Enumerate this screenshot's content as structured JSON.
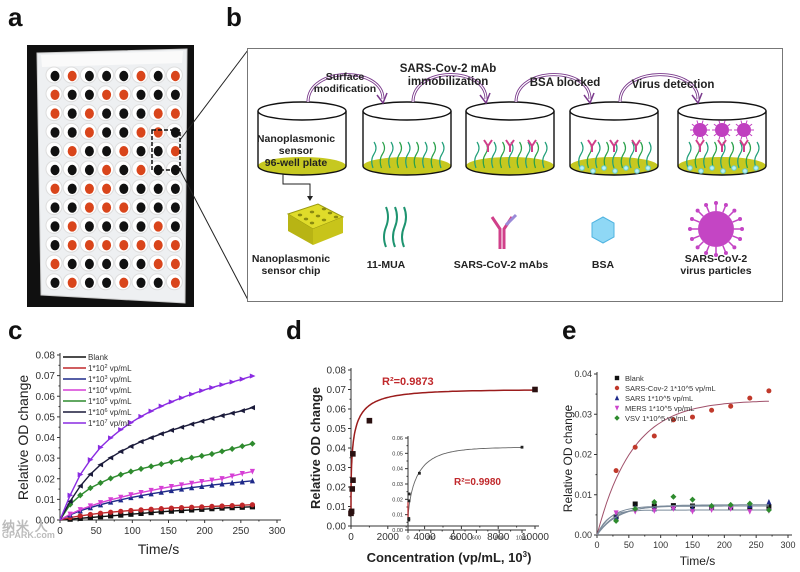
{
  "panels": {
    "a": {
      "letter": "a",
      "description": "Nanoplasmonic sensor 96-well plate photo",
      "rows": 12,
      "cols": 8,
      "well_colors": {
        "orange": "#d9451b",
        "dark": "#111111",
        "plate": "#eef0f2"
      }
    },
    "b": {
      "letter": "b",
      "steps": [
        {
          "label_lines": [
            "Surface",
            "modification"
          ]
        },
        {
          "label_lines": [
            "SARS-Cov-2 mAb",
            "immobilization"
          ]
        },
        {
          "label_lines": [
            "BSA blocked"
          ]
        },
        {
          "label_lines": [
            "Virus detection"
          ]
        }
      ],
      "first_well_label": [
        "Nanoplasmonic",
        "sensor",
        "96-well plate"
      ],
      "legend": [
        {
          "icon": "sensor-chip-icon",
          "label_lines": [
            "Nanoplasmonic",
            "sensor chip"
          ]
        },
        {
          "icon": "mua-strands-icon",
          "label_lines": [
            "11-MUA"
          ]
        },
        {
          "icon": "antibody-icon",
          "label_lines": [
            "SARS-CoV-2 mAbs"
          ]
        },
        {
          "icon": "bsa-hexagon-icon",
          "label_lines": [
            "BSA"
          ]
        },
        {
          "icon": "virus-particle-icon",
          "label_lines": [
            "SARS-CoV-2",
            "virus particles"
          ]
        }
      ]
    },
    "c": {
      "letter": "c"
    },
    "d": {
      "letter": "d"
    },
    "e": {
      "letter": "e"
    }
  },
  "watermark": {
    "line1": "纳米 人",
    "line2": "GPARK.com"
  },
  "chart_data": [
    {
      "id": "c",
      "type": "line",
      "title": "",
      "xlabel": "Time/s",
      "ylabel": "Relative OD change",
      "xlim": [
        0,
        300
      ],
      "ylim": [
        0,
        0.08
      ],
      "xticks": [
        0,
        50,
        100,
        150,
        200,
        250,
        300
      ],
      "yticks": [
        0.0,
        0.01,
        0.02,
        0.03,
        0.04,
        0.05,
        0.06,
        0.07,
        0.08
      ],
      "ytick_labels": [
        "0.00",
        "0.01",
        "0.02",
        "0.03",
        "0.04",
        "0.05",
        "0.06",
        "0.07",
        "0.08"
      ],
      "legend_position": "top-left",
      "x": [
        0,
        14,
        28,
        42,
        56,
        70,
        84,
        98,
        112,
        126,
        140,
        154,
        168,
        182,
        196,
        210,
        224,
        238,
        252,
        266
      ],
      "series": [
        {
          "name": "Blank",
          "sup": "",
          "color": "#111111",
          "marker": "square",
          "values": [
            0,
            0.0004,
            0.0008,
            0.0012,
            0.0016,
            0.002,
            0.0024,
            0.0028,
            0.0032,
            0.0036,
            0.004,
            0.0043,
            0.0046,
            0.0049,
            0.0052,
            0.0055,
            0.0058,
            0.006,
            0.0062,
            0.0064
          ]
        },
        {
          "name": "1*10",
          "sup": "2",
          "unit": " vp/mL",
          "color": "#c0282b",
          "marker": "circle",
          "values": [
            0,
            0.0012,
            0.002,
            0.0027,
            0.0033,
            0.0038,
            0.0042,
            0.0046,
            0.0049,
            0.0052,
            0.0055,
            0.0058,
            0.006,
            0.0062,
            0.0064,
            0.0066,
            0.0068,
            0.007,
            0.0072,
            0.0074
          ]
        },
        {
          "name": "1*10",
          "sup": "3",
          "unit": " vp/mL",
          "color": "#1f2a8a",
          "marker": "triangle-up",
          "values": [
            0,
            0.0025,
            0.0045,
            0.006,
            0.0074,
            0.0087,
            0.0098,
            0.0109,
            0.0118,
            0.0127,
            0.0135,
            0.0143,
            0.015,
            0.0157,
            0.0163,
            0.0169,
            0.0175,
            0.018,
            0.0185,
            0.019
          ]
        },
        {
          "name": "1*10",
          "sup": "4",
          "unit": " vp/mL",
          "color": "#d63fd6",
          "marker": "triangle-down",
          "values": [
            0,
            0.0028,
            0.005,
            0.0068,
            0.0084,
            0.0098,
            0.011,
            0.0122,
            0.0133,
            0.0143,
            0.0153,
            0.0162,
            0.017,
            0.0178,
            0.0186,
            0.0193,
            0.02,
            0.0213,
            0.0225,
            0.0235
          ]
        },
        {
          "name": "1*10",
          "sup": "5",
          "unit": " vp/mL",
          "color": "#2e8b2e",
          "marker": "diamond",
          "values": [
            0,
            0.0075,
            0.012,
            0.0155,
            0.018,
            0.0202,
            0.022,
            0.0235,
            0.0248,
            0.026,
            0.0271,
            0.0282,
            0.0292,
            0.0302,
            0.0311,
            0.032,
            0.0333,
            0.0345,
            0.0358,
            0.037
          ]
        },
        {
          "name": "1*10",
          "sup": "6",
          "unit": " vp/mL",
          "color": "#1a1a3a",
          "marker": "triangle-left",
          "values": [
            0,
            0.009,
            0.0165,
            0.0222,
            0.0268,
            0.0302,
            0.0332,
            0.0357,
            0.038,
            0.0399,
            0.0418,
            0.0435,
            0.045,
            0.0465,
            0.0479,
            0.0493,
            0.0506,
            0.0518,
            0.053,
            0.0545
          ]
        },
        {
          "name": "1*10",
          "sup": "7",
          "unit": " vp/mL",
          "color": "#8a2be2",
          "marker": "triangle-right",
          "values": [
            0,
            0.012,
            0.022,
            0.0292,
            0.0352,
            0.0398,
            0.0438,
            0.0472,
            0.0502,
            0.0528,
            0.0552,
            0.0573,
            0.0592,
            0.061,
            0.0627,
            0.0642,
            0.0656,
            0.0669,
            0.0683,
            0.0698
          ]
        }
      ]
    },
    {
      "id": "d",
      "type": "scatter",
      "title": "",
      "xlabel": "Concentration (vp/mL, 10",
      "xlabel_sup": "3",
      "xlabel_end": ")",
      "ylabel": "Relative OD change",
      "xlim": [
        0,
        10000
      ],
      "ylim": [
        0,
        0.08
      ],
      "xticks": [
        0,
        2000,
        4000,
        6000,
        8000,
        10000
      ],
      "yticks": [
        0.0,
        0.01,
        0.02,
        0.03,
        0.04,
        0.05,
        0.06,
        0.07,
        0.08
      ],
      "ytick_labels": [
        "0.00",
        "0.01",
        "0.02",
        "0.03",
        "0.04",
        "0.05",
        "0.06",
        "0.07",
        "0.08"
      ],
      "points": {
        "x": [
          0,
          0.1,
          1,
          10,
          100,
          1000,
          10000
        ],
        "y": [
          0.0065,
          0.0075,
          0.019,
          0.0235,
          0.037,
          0.054,
          0.07
        ]
      },
      "fit_color": "#9b1c1c",
      "annotation": {
        "text": "R²=0.9873",
        "color": "#c0282b"
      },
      "inset": {
        "xlim": [
          0,
          1000
        ],
        "ylim": [
          0,
          0.06
        ],
        "xticks": [
          0,
          200,
          400,
          600,
          800,
          1000
        ],
        "yticks": [
          0.0,
          0.01,
          0.02,
          0.03,
          0.04,
          0.05,
          0.06
        ],
        "ytick_labels": [
          "0.00",
          "0.01",
          "0.02",
          "0.03",
          "0.04",
          "0.05",
          "0.06"
        ],
        "points": {
          "x": [
            0,
            0.1,
            1,
            10,
            100,
            1000
          ],
          "y": [
            0.0065,
            0.0075,
            0.019,
            0.0235,
            0.037,
            0.054
          ]
        },
        "annotation": {
          "text": "R²=0.9980",
          "color": "#c0282b"
        }
      }
    },
    {
      "id": "e",
      "type": "scatter",
      "title": "",
      "xlabel": "Time/s",
      "ylabel": "Relative OD change",
      "xlim": [
        0,
        300
      ],
      "ylim": [
        0,
        0.04
      ],
      "xticks": [
        0,
        50,
        100,
        150,
        200,
        250,
        300
      ],
      "yticks": [
        0.0,
        0.01,
        0.02,
        0.03,
        0.04
      ],
      "ytick_labels": [
        "0.00",
        "0.01",
        "0.02",
        "0.03",
        "0.04"
      ],
      "legend_position": "top-left",
      "x": [
        30,
        60,
        90,
        120,
        150,
        180,
        210,
        240,
        270
      ],
      "series": [
        {
          "name": "Blank",
          "color": "#111111",
          "marker": "square",
          "values": [
            0.0045,
            0.0077,
            0.0072,
            0.0073,
            0.0072,
            0.0068,
            0.0068,
            0.0068,
            0.007
          ],
          "plateau": 0.0072,
          "k": 0.045
        },
        {
          "name": "SARS-Cov-2 1*10^5 vp/mL",
          "color": "#c0392b",
          "marker": "circle",
          "values": [
            0.016,
            0.0218,
            0.0246,
            0.0286,
            0.0293,
            0.031,
            0.032,
            0.034,
            0.0358
          ],
          "plateau": 0.0335,
          "k": 0.018
        },
        {
          "name": "SARS 1*10^5 vp/mL",
          "color": "#1f2a8a",
          "marker": "triangle-up",
          "values": [
            0.0045,
            0.0068,
            0.0065,
            0.0068,
            0.0065,
            0.0073,
            0.0073,
            0.0073,
            0.0082
          ],
          "plateau": 0.0072,
          "k": 0.035
        },
        {
          "name": "MERS 1*10^5 vp/mL",
          "color": "#cc44cc",
          "marker": "triangle-down",
          "values": [
            0.0055,
            0.0058,
            0.006,
            0.0065,
            0.0058,
            0.0062,
            0.0065,
            0.0058,
            0.006
          ],
          "plateau": 0.0062,
          "k": 0.06
        },
        {
          "name": "VSV 1*10^5 vp/mL",
          "color": "#2e8b2e",
          "marker": "diamond",
          "values": [
            0.0035,
            0.0065,
            0.0082,
            0.0095,
            0.0088,
            0.0072,
            0.0075,
            0.0078,
            0.0062
          ],
          "plateau": 0.0075,
          "k": 0.03
        }
      ]
    }
  ]
}
